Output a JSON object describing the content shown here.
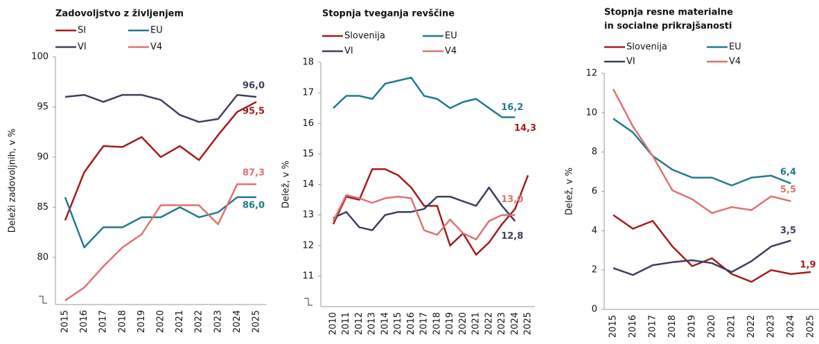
{
  "chart_data": [
    {
      "type": "line",
      "title": [
        "Zadovoljstvo z življenjem"
      ],
      "ylabel": "Deleži zadovoljnih, v %",
      "categories": [
        "2015",
        "2016",
        "2017",
        "2018",
        "2019",
        "2020",
        "2021",
        "2022",
        "2023",
        "2024",
        "2025"
      ],
      "ylim": [
        75.3,
        100
      ],
      "yticks": [
        80,
        85,
        90,
        95,
        100
      ],
      "grid": false,
      "axis_break": true,
      "series": [
        {
          "name": "SI",
          "color": "#a31a1a",
          "values": [
            83.7,
            88.5,
            91.1,
            91.0,
            92.0,
            90.0,
            91.1,
            89.7,
            92.2,
            94.5,
            95.5
          ],
          "value_labels": [
            null,
            null,
            null,
            null,
            null,
            null,
            null,
            null,
            null,
            null,
            "95,5"
          ]
        },
        {
          "name": "EU",
          "color": "#1f7a8c",
          "values": [
            86.0,
            81.0,
            83.0,
            83.0,
            84.0,
            84.0,
            85.0,
            84.0,
            84.5,
            86.0,
            86.0
          ],
          "value_labels": [
            null,
            null,
            null,
            null,
            null,
            null,
            null,
            null,
            null,
            null,
            "86,0"
          ]
        },
        {
          "name": "VI",
          "color": "#3b3f5c",
          "values": [
            96.0,
            96.2,
            95.5,
            96.2,
            96.2,
            95.7,
            94.2,
            93.5,
            93.8,
            96.2,
            96.0
          ],
          "value_labels": [
            null,
            null,
            null,
            null,
            null,
            null,
            null,
            null,
            null,
            null,
            "96,0"
          ]
        },
        {
          "name": "V4",
          "color": "#e07070",
          "values": [
            75.7,
            77.0,
            79.1,
            81.0,
            82.3,
            85.2,
            85.2,
            85.2,
            83.3,
            87.3,
            87.3
          ],
          "value_labels": [
            null,
            null,
            null,
            null,
            null,
            null,
            null,
            null,
            null,
            null,
            "87,3"
          ]
        }
      ]
    },
    {
      "type": "line",
      "title": [
        "Stopnja tveganja revščine"
      ],
      "ylabel": "Delež, v %",
      "categories": [
        "2010",
        "2011",
        "2012",
        "2013",
        "2014",
        "2015",
        "2016",
        "2017",
        "2018",
        "2019",
        "2020",
        "2021",
        "2022",
        "2023",
        "2024",
        "2025"
      ],
      "ylim": [
        10,
        18
      ],
      "yticks": [
        11,
        12,
        13,
        14,
        15,
        16,
        17,
        18
      ],
      "grid": false,
      "axis_break": true,
      "series": [
        {
          "name": "Slovenija",
          "color": "#a31a1a",
          "values": [
            12.7,
            13.6,
            13.5,
            14.5,
            14.5,
            14.3,
            13.9,
            13.3,
            13.3,
            12.0,
            12.4,
            11.7,
            12.1,
            12.7,
            13.2,
            14.3
          ],
          "value_labels": [
            null,
            null,
            null,
            null,
            null,
            null,
            null,
            null,
            null,
            null,
            null,
            null,
            null,
            null,
            null,
            "14,3"
          ]
        },
        {
          "name": "EU",
          "color": "#1f7a8c",
          "values": [
            16.5,
            16.9,
            16.9,
            16.8,
            17.3,
            17.4,
            17.5,
            16.9,
            16.8,
            16.5,
            16.7,
            16.8,
            16.5,
            16.2,
            16.2,
            null
          ],
          "value_labels": [
            null,
            null,
            null,
            null,
            null,
            null,
            null,
            null,
            null,
            null,
            null,
            null,
            null,
            null,
            "16,2",
            null
          ]
        },
        {
          "name": "VI",
          "color": "#3b3f5c",
          "values": [
            12.9,
            13.1,
            12.6,
            12.5,
            13.0,
            13.1,
            13.1,
            13.2,
            13.6,
            13.6,
            13.45,
            13.3,
            13.9,
            13.3,
            12.8,
            null
          ],
          "value_labels": [
            null,
            null,
            null,
            null,
            null,
            null,
            null,
            null,
            null,
            null,
            null,
            null,
            null,
            null,
            "12,8",
            null
          ]
        },
        {
          "name": "V4",
          "color": "#e07070",
          "values": [
            12.8,
            13.65,
            13.55,
            13.4,
            13.55,
            13.6,
            13.55,
            12.5,
            12.35,
            12.85,
            12.4,
            12.2,
            12.8,
            13.0,
            13.0,
            null
          ],
          "value_labels": [
            null,
            null,
            null,
            null,
            null,
            null,
            null,
            null,
            null,
            null,
            null,
            null,
            null,
            null,
            "13,0",
            null
          ]
        }
      ]
    },
    {
      "type": "line",
      "title": [
        "Stopnja resne materialne",
        "in socialne prikrajšanosti"
      ],
      "ylabel": "Delež, v %",
      "categories": [
        "2015",
        "2016",
        "2017",
        "2018",
        "2019",
        "2020",
        "2021",
        "2022",
        "2023",
        "2024",
        "2025"
      ],
      "ylim": [
        0,
        12
      ],
      "yticks": [
        0,
        2,
        4,
        6,
        8,
        10,
        12
      ],
      "grid": false,
      "axis_break": false,
      "series": [
        {
          "name": "Slovenija",
          "color": "#a31a1a",
          "values": [
            4.8,
            4.1,
            4.5,
            3.2,
            2.2,
            2.6,
            1.8,
            1.4,
            2.0,
            1.8,
            1.9
          ],
          "value_labels": [
            null,
            null,
            null,
            null,
            null,
            null,
            null,
            null,
            null,
            null,
            "1,9"
          ]
        },
        {
          "name": "EU",
          "color": "#1f7a8c",
          "values": [
            9.7,
            9.0,
            7.8,
            7.1,
            6.7,
            6.7,
            6.3,
            6.7,
            6.8,
            6.4,
            null
          ],
          "value_labels": [
            null,
            null,
            null,
            null,
            null,
            null,
            null,
            null,
            null,
            "6,4",
            null
          ]
        },
        {
          "name": "VI",
          "color": "#3b3f5c",
          "values": [
            2.1,
            1.75,
            2.25,
            2.4,
            2.5,
            2.35,
            1.9,
            2.45,
            3.2,
            3.5,
            null
          ],
          "value_labels": [
            null,
            null,
            null,
            null,
            null,
            null,
            null,
            null,
            null,
            "3,5",
            null
          ]
        },
        {
          "name": "V4",
          "color": "#e07070",
          "values": [
            11.2,
            9.3,
            7.8,
            6.05,
            5.6,
            4.9,
            5.2,
            5.05,
            5.75,
            5.5,
            null
          ],
          "value_labels": [
            null,
            null,
            null,
            null,
            null,
            null,
            null,
            null,
            null,
            "5,5",
            null
          ]
        }
      ]
    }
  ]
}
